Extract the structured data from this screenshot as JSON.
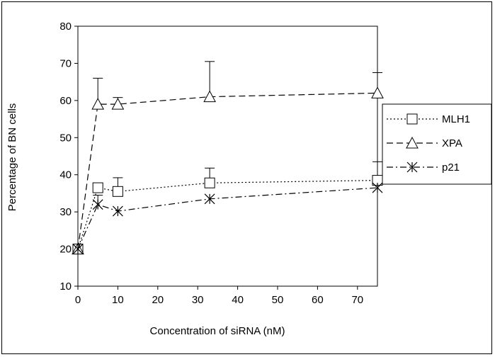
{
  "chart_data": {
    "type": "line",
    "title": "",
    "xlabel": "Concentration of siRNA (nM)",
    "ylabel": "Percentage of BN cells",
    "xlim": [
      0,
      75
    ],
    "ylim": [
      10,
      80
    ],
    "x_ticks": [
      "0",
      "10",
      "20",
      "30",
      "40",
      "50",
      "60",
      "70"
    ],
    "y_ticks": [
      "10",
      "20",
      "30",
      "40",
      "50",
      "60",
      "70",
      "80"
    ],
    "legend_position": "right",
    "series": [
      {
        "name": "MLH1",
        "marker": "square",
        "dash": "dotted",
        "x": [
          0,
          5,
          10,
          33,
          75
        ],
        "y": [
          20,
          36.5,
          35.5,
          37.8,
          38.5
        ],
        "err": [
          0,
          0,
          3.7,
          4,
          5
        ]
      },
      {
        "name": "XPA",
        "marker": "triangle",
        "dash": "dashed",
        "x": [
          0,
          5,
          10,
          33,
          75
        ],
        "y": [
          20,
          59,
          59,
          61,
          62
        ],
        "err": [
          0,
          7,
          1.8,
          9.5,
          5.5
        ]
      },
      {
        "name": "p21",
        "marker": "asterisk",
        "dash": "dash-dot",
        "x": [
          0,
          5,
          10,
          33,
          75
        ],
        "y": [
          20,
          32,
          30.2,
          33.5,
          36.5
        ],
        "err": [
          0,
          2.5,
          0,
          0,
          0
        ]
      }
    ]
  }
}
